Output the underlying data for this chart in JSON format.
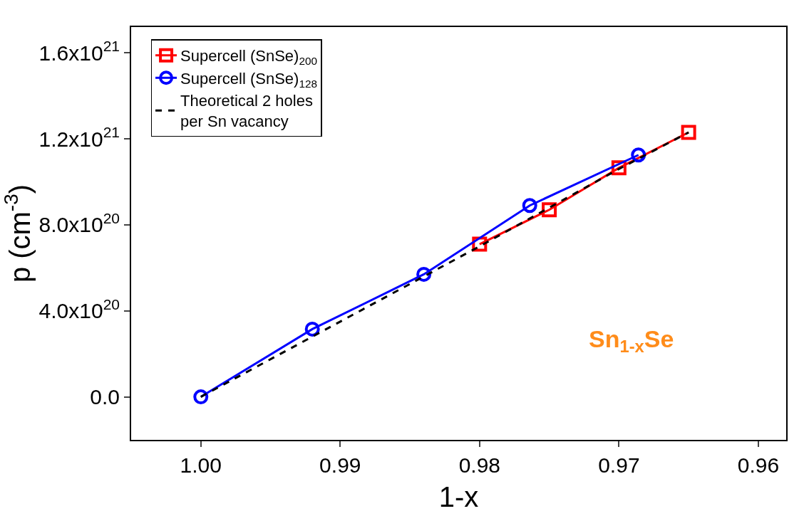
{
  "chart_data": {
    "type": "line",
    "xlabel": "1-x",
    "ylabel": "p (cm$^{-3}$)",
    "series": [
      {
        "name": "Supercell (SnSe)$_{200}$",
        "color": "#ff0000",
        "marker": "square",
        "line_style": "solid",
        "x": [
          0.98,
          0.975,
          0.97,
          0.965
        ],
        "values": [
          7.1e+20,
          8.7e+20,
          1.065e+21,
          1.23e+21
        ]
      },
      {
        "name": "Supercell (SnSe)$_{128}$",
        "color": "#0000ff",
        "marker": "circle",
        "line_style": "solid",
        "x": [
          1.0,
          0.992,
          0.984,
          0.9764,
          0.9686
        ],
        "values": [
          0,
          3.15e+20,
          5.7e+20,
          8.9e+20,
          1.125e+21
        ]
      },
      {
        "name": "Theoretical 2 holes\nper Sn vacancy",
        "color": "#000000",
        "marker": "none",
        "line_style": "dashed",
        "x": [
          1.0,
          0.992,
          0.984,
          0.98,
          0.975,
          0.97,
          0.965
        ],
        "values": [
          0,
          2.8e+20,
          5.6e+20,
          7e+20,
          8.8e+20,
          1.06e+21,
          1.23e+21
        ]
      }
    ],
    "xlim": [
      1.005,
      0.958
    ],
    "xticks": [
      {
        "value": 1.0,
        "label": "1.00"
      },
      0.99,
      0.98,
      0.97,
      0.96
    ],
    "ylim": [
      -2e+20,
      1.72e+21
    ],
    "yticks": [
      {
        "value": 0,
        "label": "0.0"
      },
      {
        "value": 4e+20,
        "label": "4.0x10$^{20}$"
      },
      {
        "value": 8e+20,
        "label": "8.0x10$^{20}$"
      },
      {
        "value": 1.2e+21,
        "label": "1.2x10$^{21}$"
      },
      {
        "value": 1.6e+21,
        "label": "1.6x10$^{21}$"
      }
    ],
    "annotations": [
      "Sn$_{1-x}$Se"
    ],
    "legend": "top left"
  }
}
